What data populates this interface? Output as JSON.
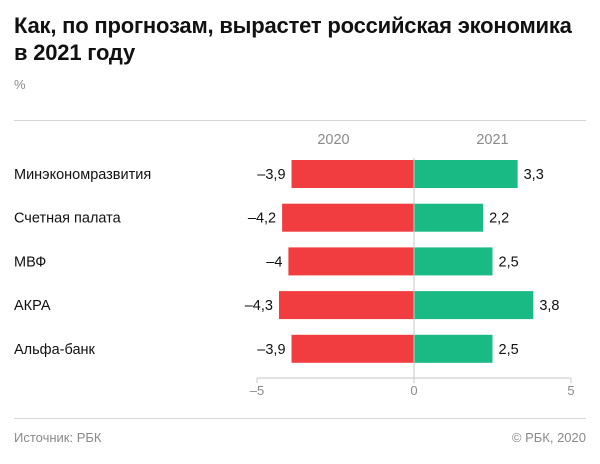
{
  "header": {
    "title": "Как, по прогнозам, вырастет российская экономика в 2021 году",
    "unit": "%"
  },
  "footer": {
    "source": "Источник: РБК",
    "copyright": "© РБК, 2020"
  },
  "colors": {
    "negative": "#f23d40",
    "positive": "#1aba84",
    "axis": "#c8c8c8",
    "muted": "#8a8a8a"
  },
  "chart_data": {
    "type": "bar",
    "orientation": "horizontal",
    "title": "Как, по прогнозам, вырастет российская экономика в 2021 году",
    "unit": "%",
    "categories": [
      "Минэкономразвития",
      "Счетная палата",
      "МВФ",
      "АКРА",
      "Альфа-банк"
    ],
    "series": [
      {
        "name": "2020",
        "values": [
          -3.9,
          -4.2,
          -4,
          -4.3,
          -3.9
        ],
        "labels": [
          "–3,9",
          "–4,2",
          "–4",
          "–4,3",
          "–3,9"
        ]
      },
      {
        "name": "2021",
        "values": [
          3.3,
          2.2,
          2.5,
          3.8,
          2.5
        ],
        "labels": [
          "3,3",
          "2,2",
          "2,5",
          "3,8",
          "2,5"
        ]
      }
    ],
    "xlim": [
      -5,
      5
    ],
    "ticks": [
      -5,
      0,
      5
    ],
    "tick_labels": [
      "–5",
      "0",
      "5"
    ],
    "grid": false,
    "source": "Источник: РБК"
  }
}
